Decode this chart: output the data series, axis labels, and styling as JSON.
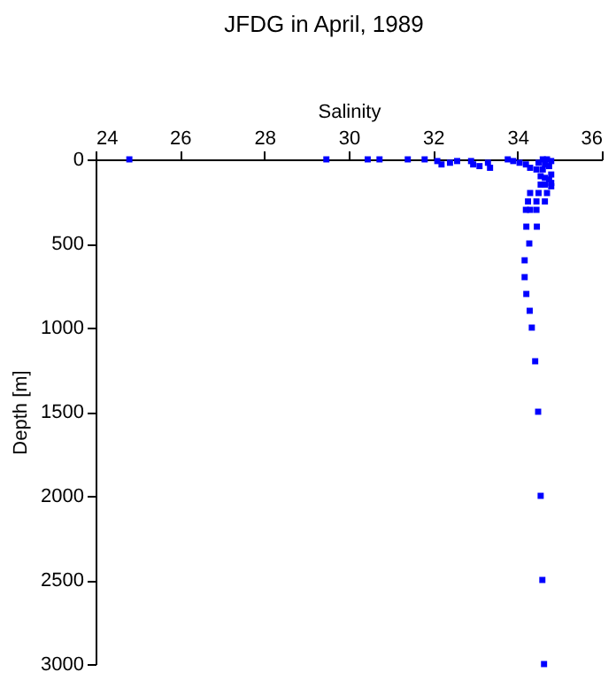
{
  "chart_data": {
    "type": "scatter",
    "title": "JFDG in April, 1989",
    "xlabel": "Salinity",
    "ylabel": "Depth [m]",
    "xlim": [
      24,
      36
    ],
    "xticks": [
      24,
      26,
      28,
      30,
      32,
      34,
      36
    ],
    "ylim": [
      3000,
      0
    ],
    "yticks": [
      0,
      500,
      1000,
      1500,
      2000,
      2500,
      3000
    ],
    "grid": false,
    "marker": "square",
    "series": [
      {
        "color": "#0000ff",
        "x": [
          24.8,
          29.47,
          30.45,
          30.73,
          31.4,
          31.8,
          32.1,
          32.2,
          32.4,
          32.57,
          32.9,
          32.95,
          33.1,
          33.3,
          33.35,
          33.77,
          33.9,
          34.05,
          34.2,
          34.3,
          34.45,
          34.5,
          34.6,
          34.7,
          34.8,
          34.65,
          34.75,
          34.6,
          34.8,
          34.55,
          34.65,
          34.75,
          34.8,
          34.55,
          34.65,
          34.8,
          34.3,
          34.5,
          34.7,
          34.25,
          34.45,
          34.65,
          34.2,
          34.3,
          34.45,
          34.21,
          34.46,
          34.28,
          34.17,
          34.17,
          34.21,
          34.29,
          34.34,
          34.42,
          34.49,
          34.55,
          34.59,
          34.63
        ],
        "values": [
          0,
          0,
          0,
          0,
          0,
          0,
          10,
          30,
          20,
          10,
          10,
          30,
          40,
          20,
          50,
          0,
          10,
          20,
          30,
          50,
          60,
          20,
          0,
          0,
          10,
          30,
          40,
          60,
          90,
          100,
          110,
          120,
          140,
          150,
          150,
          160,
          200,
          200,
          200,
          250,
          250,
          250,
          300,
          300,
          300,
          400,
          400,
          500,
          600,
          700,
          800,
          900,
          1000,
          1200,
          1500,
          2000,
          2500,
          3000
        ]
      }
    ]
  }
}
